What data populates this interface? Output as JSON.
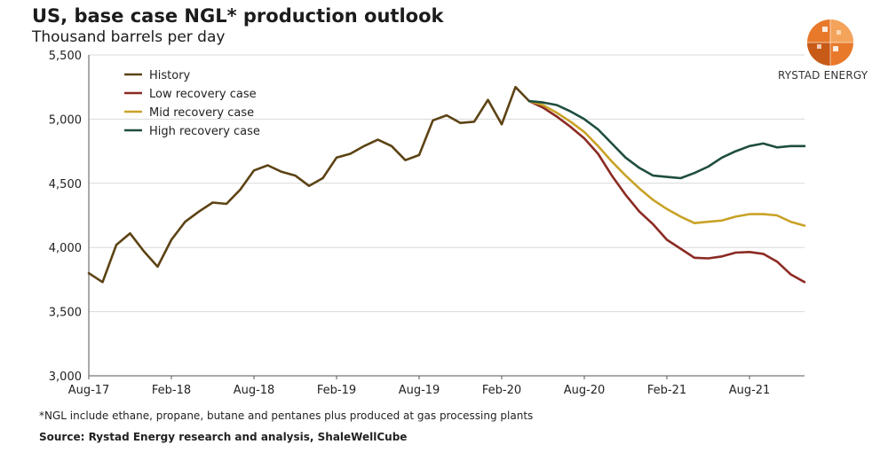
{
  "header": {
    "title": "US, base case NGL* production outlook",
    "subtitle": "Thousand barrels per day"
  },
  "brand": {
    "name": "RYSTAD ENERGY",
    "logo_icon": "rystad-globe-icon"
  },
  "footer": {
    "footnote": "*NGL include ethane, propane, butane and pentanes plus produced at gas processing plants",
    "source": "Source: Rystad Energy research and analysis, ShaleWellCube"
  },
  "chart_data": {
    "type": "line",
    "title": "US, base case NGL* production outlook",
    "ylabel": "Thousand barrels per day",
    "xlabel": "",
    "ylim": [
      3000,
      5500
    ],
    "xlim": [
      0,
      52
    ],
    "yticks": [
      3000,
      3500,
      4000,
      4500,
      5000,
      5500
    ],
    "ytick_labels": [
      "3,000",
      "3,500",
      "4,000",
      "4,500",
      "5,000",
      "5,500"
    ],
    "xticks": [
      0,
      6,
      12,
      18,
      24,
      30,
      36,
      42,
      48
    ],
    "xtick_labels": [
      "Aug-17",
      "Feb-18",
      "Aug-18",
      "Feb-19",
      "Aug-19",
      "Feb-20",
      "Aug-20",
      "Feb-21",
      "Aug-21"
    ],
    "grid": true,
    "legend_position": "top-left",
    "series": [
      {
        "name": "History",
        "color": "#5c4314",
        "x": [
          0,
          1,
          2,
          3,
          4,
          5,
          6,
          7,
          8,
          9,
          10,
          11,
          12,
          13,
          14,
          15,
          16,
          17,
          18,
          19,
          20,
          21,
          22,
          23,
          24,
          25,
          26,
          27,
          28,
          29,
          30,
          31,
          32
        ],
        "values": [
          3800,
          3730,
          4020,
          4110,
          3970,
          3850,
          4060,
          4200,
          4280,
          4350,
          4340,
          4450,
          4600,
          4640,
          4590,
          4560,
          4480,
          4540,
          4700,
          4730,
          4790,
          4840,
          4790,
          4680,
          4720,
          4990,
          5030,
          4970,
          4980,
          5150,
          4960,
          5250,
          5140
        ]
      },
      {
        "name": "Low recovery case",
        "color": "#8b2a22",
        "x": [
          32,
          33,
          34,
          35,
          36,
          37,
          38,
          39,
          40,
          41,
          42,
          43,
          44,
          45,
          46,
          47,
          48,
          49,
          50,
          51,
          52
        ],
        "values": [
          5140,
          5090,
          5020,
          4940,
          4850,
          4730,
          4560,
          4410,
          4280,
          4180,
          4060,
          3990,
          3920,
          3915,
          3930,
          3960,
          3965,
          3950,
          3890,
          3790,
          3730
        ]
      },
      {
        "name": "Mid recovery case",
        "color": "#c9a227",
        "x": [
          32,
          33,
          34,
          35,
          36,
          37,
          38,
          39,
          40,
          41,
          42,
          43,
          44,
          45,
          46,
          47,
          48,
          49,
          50,
          51,
          52
        ],
        "values": [
          5140,
          5110,
          5050,
          4980,
          4900,
          4790,
          4670,
          4560,
          4460,
          4370,
          4300,
          4240,
          4190,
          4200,
          4210,
          4240,
          4260,
          4260,
          4250,
          4200,
          4170
        ]
      },
      {
        "name": "High recovery case",
        "color": "#1f4e3d",
        "x": [
          32,
          33,
          34,
          35,
          36,
          37,
          38,
          39,
          40,
          41,
          42,
          43,
          44,
          45,
          46,
          47,
          48,
          49,
          50,
          51,
          52
        ],
        "values": [
          5140,
          5130,
          5110,
          5060,
          5000,
          4920,
          4810,
          4700,
          4620,
          4560,
          4550,
          4540,
          4580,
          4630,
          4700,
          4750,
          4790,
          4810,
          4780,
          4790,
          4790
        ]
      }
    ]
  }
}
